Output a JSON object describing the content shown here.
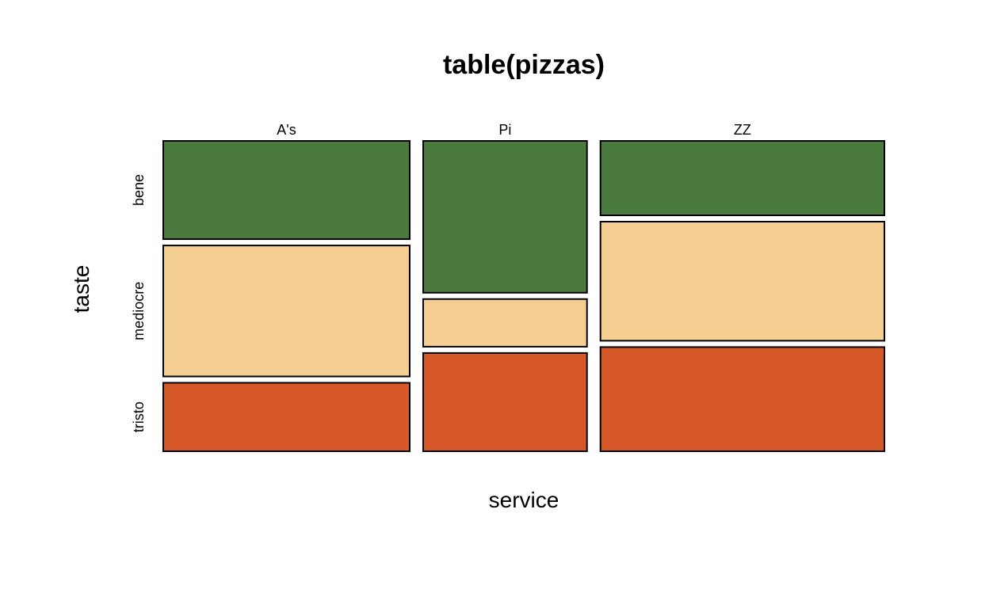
{
  "chart_data": {
    "type": "mosaic",
    "title": "table(pizzas)",
    "xlabel": "service",
    "ylabel": "taste",
    "x_categories": [
      "A's",
      "Pi",
      "ZZ"
    ],
    "y_categories": [
      "bene",
      "mediocre",
      "tristo"
    ],
    "x_proportions": [
      0.355,
      0.236,
      0.409
    ],
    "cell_proportions": [
      [
        0.33,
        0.44,
        0.23
      ],
      [
        0.51,
        0.16,
        0.33
      ],
      [
        0.25,
        0.4,
        0.35
      ]
    ],
    "colors": {
      "bene": "#4a7a3d",
      "mediocre": "#f4cf91",
      "tristo": "#d65828"
    },
    "grid": false,
    "legend": "none"
  }
}
